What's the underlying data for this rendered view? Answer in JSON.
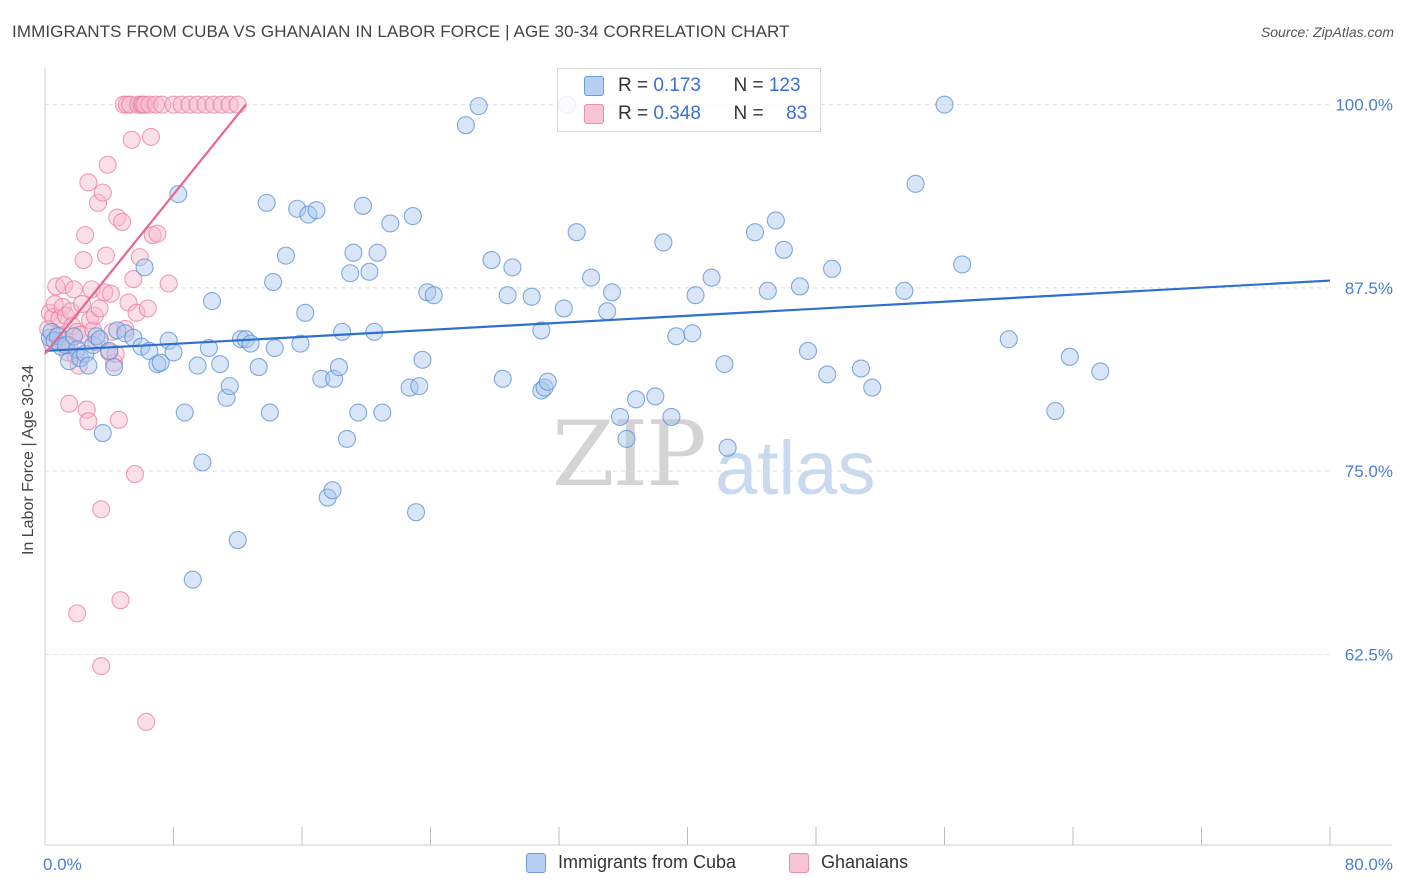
{
  "title": "IMMIGRANTS FROM CUBA VS GHANAIAN IN LABOR FORCE | AGE 30-34 CORRELATION CHART",
  "source": "Source: ZipAtlas.com",
  "watermark": {
    "zip": "ZIP",
    "atlas": "atlas"
  },
  "colors": {
    "blue_fill": "#a8c6ee",
    "blue_stroke": "#5b8fd6",
    "blue_line": "#2f6fce",
    "pink_fill": "#f6b8ca",
    "pink_stroke": "#e87fa0",
    "pink_line": "#e8678f",
    "axis_text": "#4a7fd4",
    "grid": "#dddddd"
  },
  "legend_top": [
    {
      "r_label": "R = ",
      "r_value": "0.173",
      "n_label": "N = ",
      "n_value": "123",
      "series": "blue"
    },
    {
      "r_label": "R = ",
      "r_value": "0.348",
      "n_label": "N = ",
      "n_value": "83",
      "series": "pink"
    }
  ],
  "legend_bottom": [
    {
      "label": "Immigrants from Cuba",
      "series": "blue"
    },
    {
      "label": "Ghanaians",
      "series": "pink"
    }
  ],
  "chart_data": {
    "type": "scatter",
    "title": "IMMIGRANTS FROM CUBA VS GHANAIAN IN LABOR FORCE | AGE 30-34 CORRELATION CHART",
    "xlabel": "",
    "ylabel": "In Labor Force | Age 30-34",
    "xlim": [
      0,
      80
    ],
    "ylim": [
      49.5,
      102.5
    ],
    "x_tick_labels": [
      {
        "value": 0,
        "label": "0.0%"
      },
      {
        "value": 80,
        "label": "80.0%"
      }
    ],
    "x_minor_ticks": [
      8,
      16,
      24,
      32,
      40,
      48,
      56,
      64,
      72,
      80
    ],
    "y_ticks": [
      {
        "value": 100,
        "label": "100.0%"
      },
      {
        "value": 87.5,
        "label": "87.5%"
      },
      {
        "value": 75,
        "label": "75.0%"
      },
      {
        "value": 62.5,
        "label": "62.5%"
      }
    ],
    "series": [
      {
        "name": "Immigrants from Cuba",
        "color": "blue",
        "trend": {
          "x": [
            0,
            80
          ],
          "y": [
            83.2,
            88.0
          ]
        },
        "points": [
          [
            0.3,
            84.1
          ],
          [
            0.4,
            84.5
          ],
          [
            0.6,
            83.9
          ],
          [
            0.8,
            84.2
          ],
          [
            1.0,
            83.5
          ],
          [
            1.3,
            83.6
          ],
          [
            1.5,
            82.5
          ],
          [
            1.8,
            84.2
          ],
          [
            2.0,
            83.3
          ],
          [
            2.2,
            82.7
          ],
          [
            2.5,
            83.0
          ],
          [
            2.7,
            82.2
          ],
          [
            3.0,
            83.6
          ],
          [
            3.2,
            84.2
          ],
          [
            3.4,
            84.0
          ],
          [
            3.6,
            77.6
          ],
          [
            4.0,
            83.2
          ],
          [
            4.3,
            82.1
          ],
          [
            4.5,
            84.6
          ],
          [
            5.0,
            84.4
          ],
          [
            5.5,
            84.1
          ],
          [
            6.0,
            83.5
          ],
          [
            6.2,
            88.9
          ],
          [
            6.5,
            83.2
          ],
          [
            7.0,
            82.3
          ],
          [
            7.2,
            82.4
          ],
          [
            7.7,
            83.9
          ],
          [
            8.0,
            83.1
          ],
          [
            8.3,
            93.9
          ],
          [
            8.7,
            79.0
          ],
          [
            9.2,
            67.6
          ],
          [
            9.5,
            82.2
          ],
          [
            9.8,
            75.6
          ],
          [
            10.2,
            83.4
          ],
          [
            10.4,
            86.6
          ],
          [
            10.9,
            82.3
          ],
          [
            11.3,
            80.0
          ],
          [
            11.5,
            80.8
          ],
          [
            12.0,
            70.3
          ],
          [
            12.2,
            84.0
          ],
          [
            12.5,
            84.0
          ],
          [
            12.8,
            83.7
          ],
          [
            13.3,
            82.1
          ],
          [
            13.8,
            93.3
          ],
          [
            14.0,
            79.0
          ],
          [
            14.2,
            87.9
          ],
          [
            14.3,
            83.4
          ],
          [
            15.0,
            89.7
          ],
          [
            15.7,
            92.9
          ],
          [
            15.9,
            83.7
          ],
          [
            16.2,
            85.8
          ],
          [
            16.4,
            92.5
          ],
          [
            16.9,
            92.8
          ],
          [
            17.2,
            81.3
          ],
          [
            17.6,
            73.2
          ],
          [
            17.9,
            73.7
          ],
          [
            18.0,
            81.3
          ],
          [
            18.3,
            82.1
          ],
          [
            18.5,
            84.5
          ],
          [
            18.8,
            77.2
          ],
          [
            19.0,
            88.5
          ],
          [
            19.2,
            89.9
          ],
          [
            19.5,
            79.0
          ],
          [
            19.8,
            93.1
          ],
          [
            20.2,
            88.6
          ],
          [
            20.5,
            84.5
          ],
          [
            20.7,
            89.9
          ],
          [
            21.0,
            79.0
          ],
          [
            21.5,
            91.9
          ],
          [
            22.7,
            80.7
          ],
          [
            22.9,
            92.4
          ],
          [
            23.1,
            72.2
          ],
          [
            23.3,
            80.8
          ],
          [
            23.5,
            82.6
          ],
          [
            23.8,
            87.2
          ],
          [
            24.2,
            87.0
          ],
          [
            26.2,
            98.6
          ],
          [
            27.0,
            99.9
          ],
          [
            27.8,
            89.4
          ],
          [
            28.5,
            81.3
          ],
          [
            28.8,
            87.0
          ],
          [
            29.1,
            88.9
          ],
          [
            30.3,
            86.9
          ],
          [
            30.9,
            80.5
          ],
          [
            30.9,
            84.6
          ],
          [
            31.1,
            80.7
          ],
          [
            31.3,
            81.1
          ],
          [
            32.3,
            86.1
          ],
          [
            33.1,
            91.3
          ],
          [
            34.0,
            88.2
          ],
          [
            35.0,
            85.9
          ],
          [
            35.3,
            87.2
          ],
          [
            35.8,
            78.7
          ],
          [
            36.2,
            77.2
          ],
          [
            36.8,
            79.9
          ],
          [
            38.0,
            80.1
          ],
          [
            38.5,
            90.6
          ],
          [
            39.0,
            78.7
          ],
          [
            39.3,
            84.2
          ],
          [
            40.3,
            84.4
          ],
          [
            40.5,
            87.0
          ],
          [
            41.5,
            88.2
          ],
          [
            42.3,
            82.3
          ],
          [
            42.5,
            76.6
          ],
          [
            44.2,
            91.3
          ],
          [
            45.0,
            87.3
          ],
          [
            45.5,
            92.1
          ],
          [
            46.0,
            90.1
          ],
          [
            47.0,
            87.6
          ],
          [
            47.5,
            83.2
          ],
          [
            48.7,
            81.6
          ],
          [
            49.0,
            88.8
          ],
          [
            50.8,
            82.0
          ],
          [
            51.5,
            80.7
          ],
          [
            53.5,
            87.3
          ],
          [
            54.2,
            94.6
          ],
          [
            56.0,
            100.0
          ],
          [
            57.1,
            89.1
          ],
          [
            60.0,
            84.0
          ],
          [
            62.9,
            79.1
          ],
          [
            63.8,
            82.8
          ],
          [
            65.7,
            81.8
          ],
          [
            32.5,
            100.0
          ]
        ]
      },
      {
        "name": "Ghanaians",
        "color": "pink",
        "trend": {
          "x": [
            0,
            12.5
          ],
          "y": [
            83.0,
            100.0
          ]
        },
        "points": [
          [
            0.2,
            84.7
          ],
          [
            0.3,
            85.8
          ],
          [
            0.4,
            83.8
          ],
          [
            0.5,
            85.5
          ],
          [
            0.6,
            86.4
          ],
          [
            0.7,
            87.6
          ],
          [
            0.8,
            84.3
          ],
          [
            0.9,
            85.4
          ],
          [
            1.0,
            83.9
          ],
          [
            1.1,
            86.2
          ],
          [
            1.2,
            87.7
          ],
          [
            1.3,
            85.6
          ],
          [
            1.4,
            83.1
          ],
          [
            1.5,
            79.6
          ],
          [
            1.6,
            85.9
          ],
          [
            1.7,
            84.9
          ],
          [
            1.8,
            87.4
          ],
          [
            1.9,
            82.9
          ],
          [
            2.0,
            84.5
          ],
          [
            2.1,
            82.2
          ],
          [
            2.2,
            84.3
          ],
          [
            2.3,
            86.4
          ],
          [
            2.4,
            89.4
          ],
          [
            2.5,
            91.1
          ],
          [
            2.6,
            79.2
          ],
          [
            2.7,
            94.7
          ],
          [
            2.8,
            85.3
          ],
          [
            2.9,
            87.4
          ],
          [
            3.0,
            84.6
          ],
          [
            3.1,
            85.6
          ],
          [
            3.2,
            83.8
          ],
          [
            2.7,
            78.4
          ],
          [
            3.3,
            93.3
          ],
          [
            3.4,
            86.1
          ],
          [
            3.5,
            72.4
          ],
          [
            3.5,
            61.7
          ],
          [
            3.6,
            94.0
          ],
          [
            3.7,
            87.2
          ],
          [
            3.8,
            89.7
          ],
          [
            3.9,
            95.9
          ],
          [
            4.0,
            83.1
          ],
          [
            4.1,
            87.1
          ],
          [
            4.2,
            84.5
          ],
          [
            4.3,
            82.4
          ],
          [
            4.4,
            83.0
          ],
          [
            4.5,
            92.3
          ],
          [
            4.6,
            78.5
          ],
          [
            4.7,
            66.2
          ],
          [
            4.8,
            92.0
          ],
          [
            4.9,
            100.0
          ],
          [
            5.0,
            84.7
          ],
          [
            5.1,
            100.0
          ],
          [
            5.2,
            86.5
          ],
          [
            5.3,
            100.0
          ],
          [
            5.4,
            97.6
          ],
          [
            5.5,
            88.1
          ],
          [
            5.6,
            74.8
          ],
          [
            5.7,
            85.8
          ],
          [
            5.8,
            100.0
          ],
          [
            5.9,
            89.6
          ],
          [
            6.0,
            100.0
          ],
          [
            6.1,
            100.0
          ],
          [
            6.2,
            100.0
          ],
          [
            6.3,
            57.9
          ],
          [
            6.4,
            86.1
          ],
          [
            6.5,
            100.0
          ],
          [
            6.6,
            97.8
          ],
          [
            6.7,
            91.1
          ],
          [
            6.9,
            100.0
          ],
          [
            7.0,
            91.2
          ],
          [
            7.3,
            100.0
          ],
          [
            7.7,
            87.8
          ],
          [
            8.0,
            100.0
          ],
          [
            8.5,
            100.0
          ],
          [
            9.0,
            100.0
          ],
          [
            9.5,
            100.0
          ],
          [
            10.0,
            100.0
          ],
          [
            10.5,
            100.0
          ],
          [
            11.0,
            100.0
          ],
          [
            11.5,
            100.0
          ],
          [
            12.0,
            100.0
          ],
          [
            2.0,
            65.3
          ],
          [
            1.5,
            83.6
          ]
        ]
      }
    ]
  }
}
